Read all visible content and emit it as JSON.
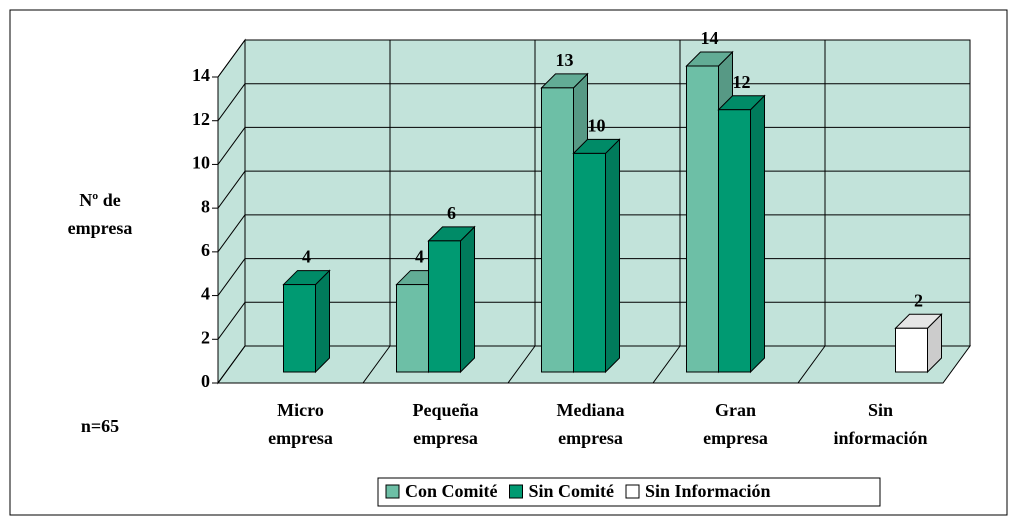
{
  "chart_data": {
    "type": "bar3d",
    "y_label": "Nº de empresa",
    "note": "n=65",
    "categories": [
      "Micro empresa",
      "Pequeña empresa",
      "Mediana empresa",
      "Gran empresa",
      "Sin información"
    ],
    "series": [
      {
        "name": "Con Comité",
        "color": "#6dbfa6",
        "values": [
          null,
          4,
          13,
          14,
          null
        ]
      },
      {
        "name": "Sin Comité",
        "color": "#009a72",
        "values": [
          4,
          6,
          10,
          12,
          null
        ]
      },
      {
        "name": "Sin Información",
        "color": "#ffffff",
        "values": [
          null,
          null,
          null,
          null,
          2
        ]
      }
    ],
    "ylim": [
      0,
      14
    ],
    "yticks": [
      0,
      2,
      4,
      6,
      8,
      10,
      12,
      14
    ],
    "grid": true,
    "legend": "bottom",
    "wall_color": "#c2e3da"
  }
}
